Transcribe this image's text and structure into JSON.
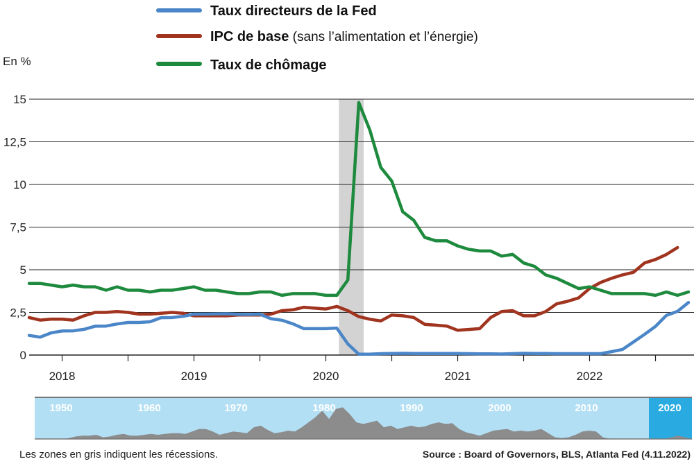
{
  "chart_data": {
    "type": "line",
    "ylabel": "En %",
    "ylim": [
      0,
      15
    ],
    "yticks": [
      "0",
      "2,5",
      "5",
      "7,5",
      "10",
      "12,5",
      "15"
    ],
    "yticks_values": [
      0,
      2.5,
      5,
      7.5,
      10,
      12.5,
      15
    ],
    "xticks": [
      "2018",
      "2019",
      "2020",
      "2021",
      "2022"
    ],
    "xrange": [
      "2017-10",
      "2022-10"
    ],
    "grid": true,
    "legend_placement": "top",
    "recession": {
      "start": "2020-02",
      "end": "2020-04",
      "color": "#d3d3d3"
    },
    "series": [
      {
        "name": "Taux directeurs de la Fed",
        "name_bold": "Taux directeurs de la Fed",
        "name_extra": "",
        "color": "#4a86c8",
        "start": "2017-10",
        "values": [
          1.15,
          1.05,
          1.3,
          1.41,
          1.42,
          1.51,
          1.69,
          1.7,
          1.82,
          1.91,
          1.91,
          1.95,
          2.19,
          2.2,
          2.27,
          2.4,
          2.4,
          2.41,
          2.42,
          2.39,
          2.38,
          2.4,
          2.13,
          2.04,
          1.83,
          1.55,
          1.55,
          1.55,
          1.58,
          0.65,
          0.05,
          0.05,
          0.08,
          0.09,
          0.1,
          0.09,
          0.09,
          0.09,
          0.09,
          0.09,
          0.08,
          0.07,
          0.07,
          0.06,
          0.08,
          0.1,
          0.09,
          0.09,
          0.08,
          0.08,
          0.08,
          0.08,
          0.08,
          0.2,
          0.33,
          0.77,
          1.21,
          1.68,
          2.33,
          2.56,
          3.08
        ]
      },
      {
        "name": "IPC de base (sans l’alimentation et l’énergie)",
        "name_bold": "IPC de base",
        "name_extra": " (sans l’alimentation et l’énergie)",
        "color": "#a0341f",
        "start": "2017-10",
        "values": [
          2.2,
          2.05,
          2.1,
          2.1,
          2.05,
          2.3,
          2.5,
          2.5,
          2.55,
          2.5,
          2.4,
          2.4,
          2.45,
          2.5,
          2.45,
          2.3,
          2.3,
          2.3,
          2.3,
          2.35,
          2.35,
          2.35,
          2.4,
          2.6,
          2.65,
          2.8,
          2.75,
          2.7,
          2.85,
          2.6,
          2.25,
          2.1,
          2.0,
          2.35,
          2.3,
          2.2,
          1.8,
          1.75,
          1.7,
          1.45,
          1.5,
          1.55,
          2.2,
          2.55,
          2.6,
          2.3,
          2.3,
          2.55,
          3.0,
          3.15,
          3.35,
          3.9,
          4.25,
          4.5,
          4.7,
          4.85,
          5.4,
          5.6,
          5.9,
          6.3
        ]
      },
      {
        "name": "Taux de chômage",
        "name_bold": "Taux de chômage",
        "name_extra": "",
        "color": "#1e8a3e",
        "start": "2017-10",
        "values": [
          4.2,
          4.2,
          4.1,
          4.0,
          4.1,
          4.0,
          4.0,
          3.8,
          4.0,
          3.8,
          3.8,
          3.7,
          3.8,
          3.8,
          3.9,
          4.0,
          3.8,
          3.8,
          3.7,
          3.6,
          3.6,
          3.7,
          3.7,
          3.5,
          3.6,
          3.6,
          3.6,
          3.5,
          3.5,
          4.4,
          14.8,
          13.2,
          11.0,
          10.2,
          8.4,
          7.9,
          6.9,
          6.7,
          6.7,
          6.4,
          6.2,
          6.1,
          6.1,
          5.8,
          5.9,
          5.4,
          5.2,
          4.7,
          4.5,
          4.2,
          3.9,
          4.0,
          3.8,
          3.6,
          3.6,
          3.6,
          3.6,
          3.5,
          3.7,
          3.5,
          3.7
        ]
      }
    ],
    "overview": {
      "decades": [
        "1950",
        "1960",
        "1970",
        "1980",
        "1990",
        "2000",
        "2010",
        "2020"
      ],
      "highlight": "2020",
      "background_color": "#b3dff5",
      "highlight_color": "#29abe2",
      "silhouette_color": "#8c8c8c"
    },
    "footnote": "Les zones en gris indiquent les récessions.",
    "source": "Source : Board of Governors, BLS, Atlanta Fed (4.11.2022)"
  }
}
